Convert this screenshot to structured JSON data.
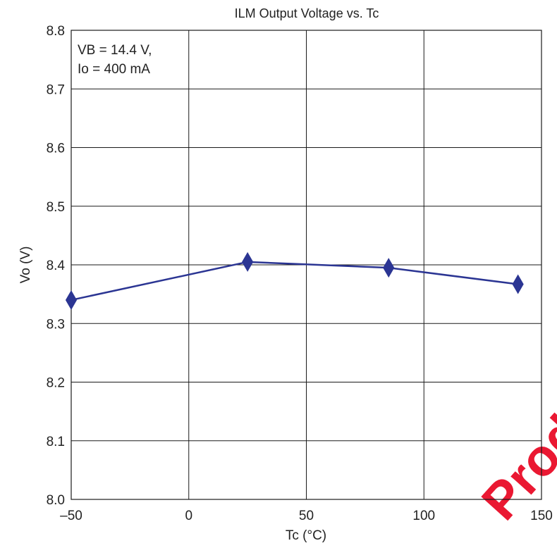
{
  "chart_data": {
    "type": "line",
    "title": "ILM Output Voltage vs. Tc",
    "xlabel": "Tc (°C)",
    "ylabel": "Vo (V)",
    "xlim": [
      -50,
      150
    ],
    "ylim": [
      8.0,
      8.8
    ],
    "x_ticks": [
      "–50",
      "0",
      "50",
      "100",
      "150"
    ],
    "y_ticks": [
      "8.0",
      "8.1",
      "8.2",
      "8.3",
      "8.4",
      "8.5",
      "8.6",
      "8.7",
      "8.8"
    ],
    "grid": true,
    "annotation": [
      "VB = 14.4 V,",
      "Io = 400 mA"
    ],
    "series": [
      {
        "x": [
          -50,
          25,
          85,
          140
        ],
        "y": [
          8.34,
          8.405,
          8.395,
          8.367
        ],
        "color": "#2b3593",
        "marker": "diamond"
      }
    ]
  },
  "watermark": "Produ"
}
